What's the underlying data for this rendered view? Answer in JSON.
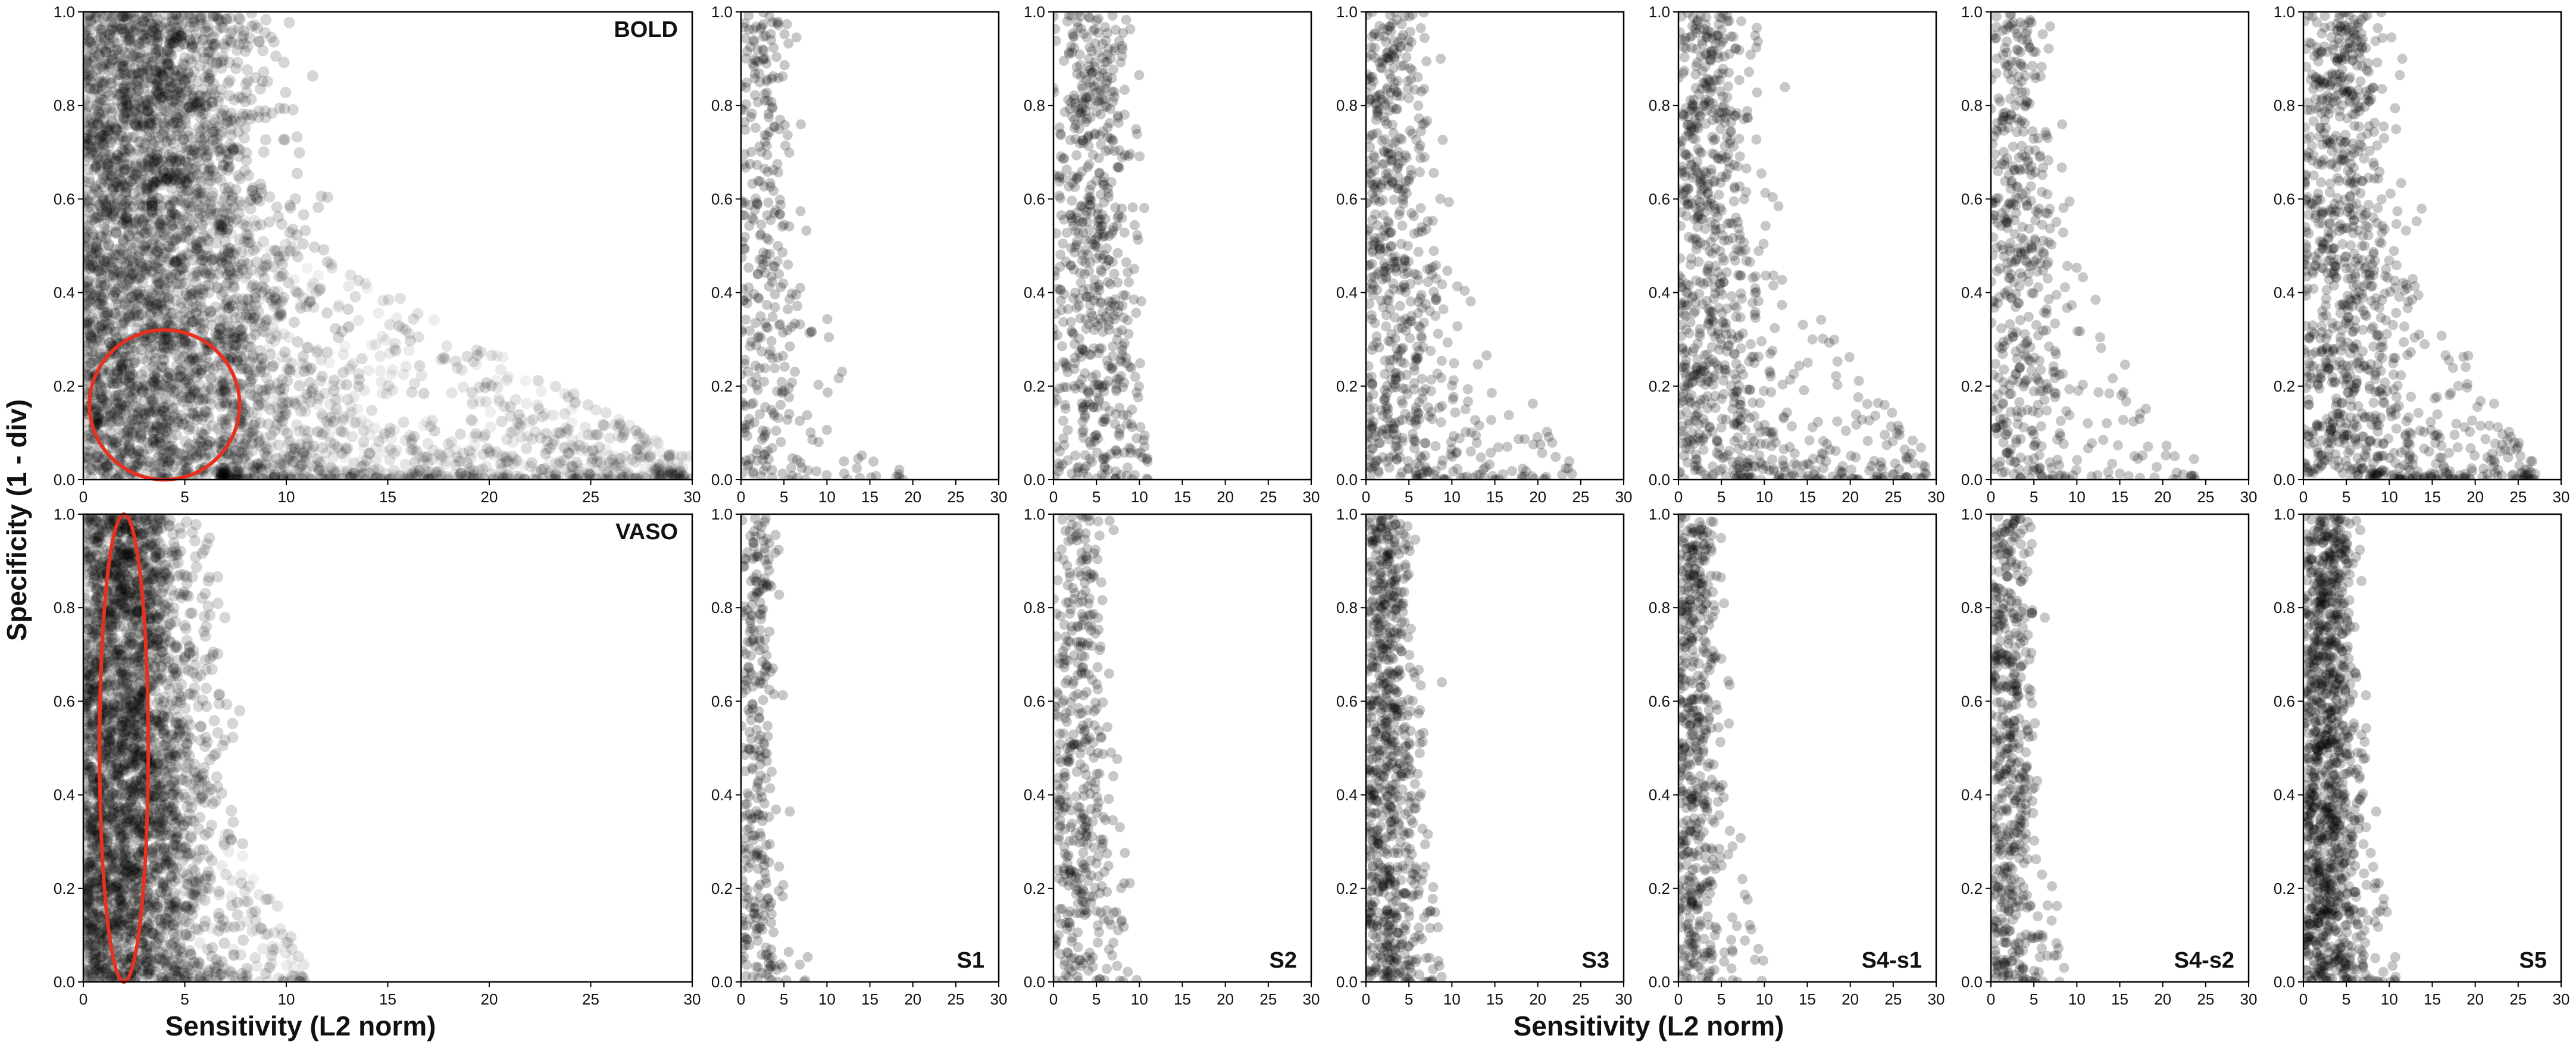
{
  "figure": {
    "ylabel": "Specificity (1 - div)",
    "xlabel_left": "Sensitivity (L2 norm)",
    "xlabel_center": "Sensitivity (L2 norm)"
  },
  "colors": {
    "points": "#000000",
    "highlight": "#e8301f"
  },
  "chart_data": [
    {
      "id": "bold-all",
      "type": "scatter",
      "row": "BOLD",
      "label": "BOLD",
      "label_position": "top-right",
      "xlim": [
        0,
        30
      ],
      "ylim": [
        0,
        1.0
      ],
      "xticks": [
        "0",
        "5",
        "10",
        "15",
        "20",
        "25",
        "30"
      ],
      "yticks": [
        "0.0",
        "0.2",
        "0.4",
        "0.6",
        "0.8",
        "1.0"
      ],
      "n_points": 4200,
      "x_center": 3.5,
      "x_spread": 3.2,
      "x_max": 30,
      "tail_fraction": 0.25,
      "point_alpha": 0.16,
      "ellipse": {
        "cx": 4,
        "cy": 0.16,
        "rx": 3.7,
        "ry": 0.16
      }
    },
    {
      "id": "bold-s1",
      "type": "scatter",
      "row": "BOLD",
      "label": "",
      "xlim": [
        0,
        30
      ],
      "ylim": [
        0,
        1.0
      ],
      "xticks": [
        "0",
        "5",
        "10",
        "15",
        "20",
        "25",
        "30"
      ],
      "yticks": [
        "0.0",
        "0.2",
        "0.4",
        "0.6",
        "0.8",
        "1.0"
      ],
      "n_points": 340,
      "x_center": 2.5,
      "x_spread": 2.2,
      "x_max": 19,
      "tail_fraction": 0.12,
      "point_alpha": 0.22
    },
    {
      "id": "bold-s2",
      "type": "scatter",
      "row": "BOLD",
      "label": "",
      "xlim": [
        0,
        30
      ],
      "ylim": [
        0,
        1.0
      ],
      "xticks": [
        "0",
        "5",
        "10",
        "15",
        "20",
        "25",
        "30"
      ],
      "yticks": [
        "0.0",
        "0.2",
        "0.4",
        "0.6",
        "0.8",
        "1.0"
      ],
      "n_points": 600,
      "x_center": 4.5,
      "x_spread": 2.6,
      "x_max": 11,
      "tail_fraction": 0.05,
      "point_alpha": 0.22
    },
    {
      "id": "bold-s3",
      "type": "scatter",
      "row": "BOLD",
      "label": "",
      "xlim": [
        0,
        30
      ],
      "ylim": [
        0,
        1.0
      ],
      "xticks": [
        "0",
        "5",
        "10",
        "15",
        "20",
        "25",
        "30"
      ],
      "yticks": [
        "0.0",
        "0.2",
        "0.4",
        "0.6",
        "0.8",
        "1.0"
      ],
      "n_points": 650,
      "x_center": 3.0,
      "x_spread": 2.6,
      "x_max": 24,
      "tail_fraction": 0.2,
      "point_alpha": 0.22
    },
    {
      "id": "bold-s4s1",
      "type": "scatter",
      "row": "BOLD",
      "label": "",
      "xlim": [
        0,
        30
      ],
      "ylim": [
        0,
        1.0
      ],
      "xticks": [
        "0",
        "5",
        "10",
        "15",
        "20",
        "25",
        "30"
      ],
      "yticks": [
        "0.0",
        "0.2",
        "0.4",
        "0.6",
        "0.8",
        "1.0"
      ],
      "n_points": 850,
      "x_center": 3.5,
      "x_spread": 2.8,
      "x_max": 29,
      "tail_fraction": 0.22,
      "point_alpha": 0.22
    },
    {
      "id": "bold-s4s2",
      "type": "scatter",
      "row": "BOLD",
      "label": "",
      "xlim": [
        0,
        30
      ],
      "ylim": [
        0,
        1.0
      ],
      "xticks": [
        "0",
        "5",
        "10",
        "15",
        "20",
        "25",
        "30"
      ],
      "yticks": [
        "0.0",
        "0.2",
        "0.4",
        "0.6",
        "0.8",
        "1.0"
      ],
      "n_points": 520,
      "x_center": 3.0,
      "x_spread": 2.6,
      "x_max": 24,
      "tail_fraction": 0.18,
      "point_alpha": 0.22
    },
    {
      "id": "bold-s5",
      "type": "scatter",
      "row": "BOLD",
      "label": "",
      "xlim": [
        0,
        30
      ],
      "ylim": [
        0,
        1.0
      ],
      "xticks": [
        "0",
        "5",
        "10",
        "15",
        "20",
        "25",
        "30"
      ],
      "yticks": [
        "0.0",
        "0.2",
        "0.4",
        "0.6",
        "0.8",
        "1.0"
      ],
      "n_points": 1000,
      "x_center": 4.5,
      "x_spread": 3.2,
      "x_max": 27,
      "tail_fraction": 0.22,
      "point_alpha": 0.22
    },
    {
      "id": "vaso-all",
      "type": "scatter",
      "row": "VASO",
      "label": "VASO",
      "label_position": "top-right",
      "xlim": [
        0,
        30
      ],
      "ylim": [
        0,
        1.0
      ],
      "xticks": [
        "0",
        "5",
        "10",
        "15",
        "20",
        "25",
        "30"
      ],
      "yticks": [
        "0.0",
        "0.2",
        "0.4",
        "0.6",
        "0.8",
        "1.0"
      ],
      "n_points": 3000,
      "x_center": 2.2,
      "x_spread": 1.9,
      "x_max": 11,
      "tail_fraction": 0.06,
      "point_alpha": 0.16,
      "ellipse": {
        "cx": 2,
        "cy": 0.5,
        "rx": 1.2,
        "ry": 0.5
      }
    },
    {
      "id": "vaso-s1",
      "type": "scatter",
      "row": "VASO",
      "label": "S1",
      "label_position": "bottom-right",
      "xlim": [
        0,
        30
      ],
      "ylim": [
        0,
        1.0
      ],
      "xticks": [
        "0",
        "5",
        "10",
        "15",
        "20",
        "25",
        "30"
      ],
      "yticks": [
        "0.0",
        "0.2",
        "0.4",
        "0.6",
        "0.8",
        "1.0"
      ],
      "n_points": 300,
      "x_center": 1.8,
      "x_spread": 1.3,
      "x_max": 8,
      "tail_fraction": 0.04,
      "point_alpha": 0.22
    },
    {
      "id": "vaso-s2",
      "type": "scatter",
      "row": "VASO",
      "label": "S2",
      "label_position": "bottom-right",
      "xlim": [
        0,
        30
      ],
      "ylim": [
        0,
        1.0
      ],
      "xticks": [
        "0",
        "5",
        "10",
        "15",
        "20",
        "25",
        "30"
      ],
      "yticks": [
        "0.0",
        "0.2",
        "0.4",
        "0.6",
        "0.8",
        "1.0"
      ],
      "n_points": 420,
      "x_center": 3.0,
      "x_spread": 2.0,
      "x_max": 10,
      "tail_fraction": 0.05,
      "point_alpha": 0.22
    },
    {
      "id": "vaso-s3",
      "type": "scatter",
      "row": "VASO",
      "label": "S3",
      "label_position": "bottom-right",
      "xlim": [
        0,
        30
      ],
      "ylim": [
        0,
        1.0
      ],
      "xticks": [
        "0",
        "5",
        "10",
        "15",
        "20",
        "25",
        "30"
      ],
      "yticks": [
        "0.0",
        "0.2",
        "0.4",
        "0.6",
        "0.8",
        "1.0"
      ],
      "n_points": 750,
      "x_center": 2.5,
      "x_spread": 1.8,
      "x_max": 9,
      "tail_fraction": 0.05,
      "point_alpha": 0.22
    },
    {
      "id": "vaso-s4s1",
      "type": "scatter",
      "row": "VASO",
      "label": "S4-s1",
      "label_position": "bottom-right",
      "xlim": [
        0,
        30
      ],
      "ylim": [
        0,
        1.0
      ],
      "xticks": [
        "0",
        "5",
        "10",
        "15",
        "20",
        "25",
        "30"
      ],
      "yticks": [
        "0.0",
        "0.2",
        "0.4",
        "0.6",
        "0.8",
        "1.0"
      ],
      "n_points": 520,
      "x_center": 1.8,
      "x_spread": 1.5,
      "x_max": 10,
      "tail_fraction": 0.04,
      "point_alpha": 0.22
    },
    {
      "id": "vaso-s4s2",
      "type": "scatter",
      "row": "VASO",
      "label": "S4-s2",
      "label_position": "bottom-right",
      "xlim": [
        0,
        30
      ],
      "ylim": [
        0,
        1.0
      ],
      "xticks": [
        "0",
        "5",
        "10",
        "15",
        "20",
        "25",
        "30"
      ],
      "yticks": [
        "0.0",
        "0.2",
        "0.4",
        "0.6",
        "0.8",
        "1.0"
      ],
      "n_points": 520,
      "x_center": 2.0,
      "x_spread": 1.7,
      "x_max": 9,
      "tail_fraction": 0.06,
      "point_alpha": 0.22
    },
    {
      "id": "vaso-s5",
      "type": "scatter",
      "row": "VASO",
      "label": "S5",
      "label_position": "bottom-right",
      "xlim": [
        0,
        30
      ],
      "ylim": [
        0,
        1.0
      ],
      "xticks": [
        "0",
        "5",
        "10",
        "15",
        "20",
        "25",
        "30"
      ],
      "yticks": [
        "0.0",
        "0.2",
        "0.4",
        "0.6",
        "0.8",
        "1.0"
      ],
      "n_points": 1100,
      "x_center": 2.8,
      "x_spread": 1.9,
      "x_max": 11,
      "tail_fraction": 0.05,
      "point_alpha": 0.22
    }
  ]
}
